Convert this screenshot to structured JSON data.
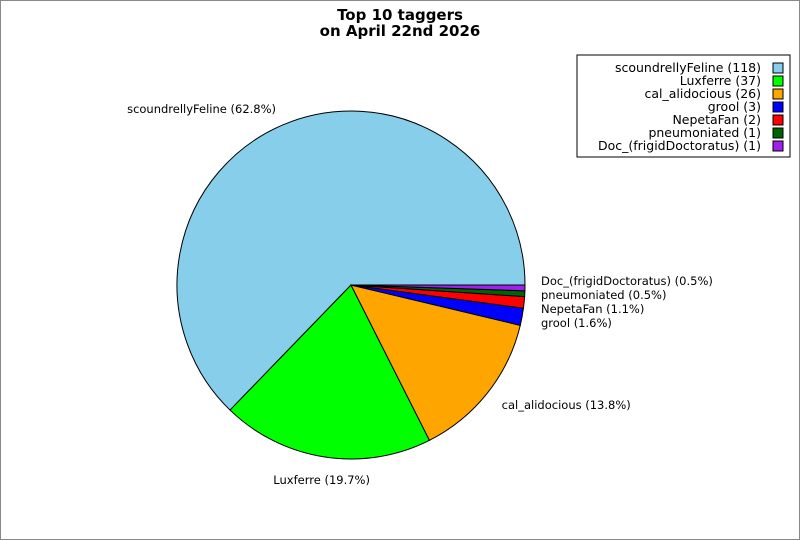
{
  "chart_data": {
    "type": "pie",
    "title": [
      "Top 10 taggers",
      "on April 22nd 2026"
    ],
    "start_angle_deg": 0,
    "direction": "counterclockwise",
    "legend_placement": "top-right",
    "slices": [
      {
        "name": "scoundrellyFeline",
        "value": 118,
        "percent_label": "scoundrellyFeline (62.8%)",
        "legend_label": "scoundrellyFeline (118)",
        "color": "#87ceeb"
      },
      {
        "name": "Luxferre",
        "value": 37,
        "percent_label": "Luxferre (19.7%)",
        "legend_label": "Luxferre (37)",
        "color": "#00ff00"
      },
      {
        "name": "cal_alidocious",
        "value": 26,
        "percent_label": "cal_alidocious (13.8%)",
        "legend_label": "cal_alidocious (26)",
        "color": "#ffa500"
      },
      {
        "name": "grool",
        "value": 3,
        "percent_label": "grool (1.6%)",
        "legend_label": "grool (3)",
        "color": "#0000ff"
      },
      {
        "name": "NepetaFan",
        "value": 2,
        "percent_label": "NepetaFan (1.1%)",
        "legend_label": "NepetaFan (2)",
        "color": "#ff0000"
      },
      {
        "name": "pneumoniated",
        "value": 1,
        "percent_label": "pneumoniated (0.5%)",
        "legend_label": "pneumoniated (1)",
        "color": "#006400"
      },
      {
        "name": "Doc_(frigidDoctoratus)",
        "value": 1,
        "percent_label": "Doc_(frigidDoctoratus) (0.5%)",
        "legend_label": "Doc_(frigidDoctoratus) (1)",
        "color": "#a020f0"
      }
    ]
  }
}
